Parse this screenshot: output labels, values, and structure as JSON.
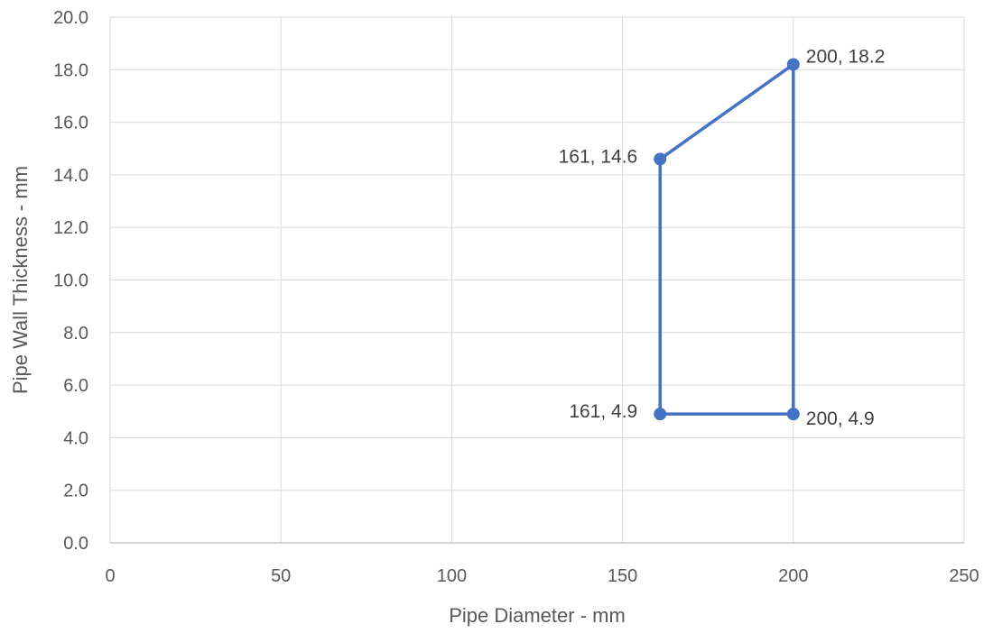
{
  "chart_data": {
    "type": "scatter",
    "title": "",
    "xlabel": "Pipe Diameter - mm",
    "ylabel": "Pipe Wall Thickness - mm",
    "xlim": [
      0,
      250
    ],
    "ylim": [
      0,
      20
    ],
    "x_ticks": [
      0,
      50,
      100,
      150,
      200,
      250
    ],
    "x_tick_labels": [
      "0",
      "50",
      "100",
      "150",
      "200",
      "250"
    ],
    "y_ticks": [
      0,
      2,
      4,
      6,
      8,
      10,
      12,
      14,
      16,
      18,
      20
    ],
    "y_tick_labels": [
      "0.0",
      "2.0",
      "4.0",
      "6.0",
      "8.0",
      "10.0",
      "12.0",
      "14.0",
      "16.0",
      "18.0",
      "20.0"
    ],
    "grid": true,
    "legend": "none",
    "series": [
      {
        "color": "#4472C4",
        "marker": "circle",
        "connected": true,
        "closed": true,
        "points": [
          {
            "x": 161,
            "y": 4.9,
            "label": "161, 4.9",
            "label_side": "left"
          },
          {
            "x": 161,
            "y": 14.6,
            "label": "161, 14.6",
            "label_side": "left"
          },
          {
            "x": 200,
            "y": 18.2,
            "label": "200, 18.2",
            "label_side": "right"
          },
          {
            "x": 200,
            "y": 4.9,
            "label": "200, 4.9",
            "label_side": "right"
          }
        ]
      }
    ]
  }
}
